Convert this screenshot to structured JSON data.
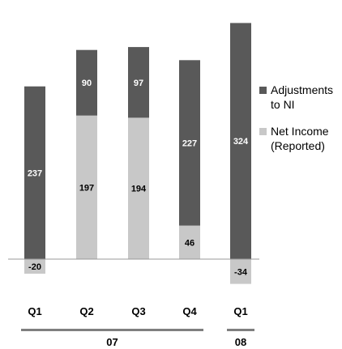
{
  "chart_data": {
    "type": "bar",
    "stacked": true,
    "categories": [
      "Q1",
      "Q2",
      "Q3",
      "Q4",
      "Q1"
    ],
    "groups": [
      {
        "label": "07",
        "categories": [
          "Q1",
          "Q2",
          "Q3",
          "Q4"
        ]
      },
      {
        "label": "08",
        "categories": [
          "Q1"
        ]
      }
    ],
    "series": [
      {
        "name": "Net Income (Reported)",
        "color": "#c8c8c8",
        "label_color": "#000000",
        "values": [
          -20,
          197,
          194,
          46,
          -34
        ]
      },
      {
        "name": "Adjustments to NI",
        "color": "#595959",
        "label_color": "#ffffff",
        "values": [
          237,
          90,
          97,
          227,
          324
        ]
      }
    ],
    "legend": {
      "position": "right",
      "entries": [
        {
          "line1": "Adjustments",
          "line2": "to NI",
          "color": "#595959"
        },
        {
          "line1": "Net Income",
          "line2": "(Reported)",
          "color": "#c8c8c8"
        }
      ]
    },
    "title": "",
    "xlabel": "",
    "ylabel": "",
    "ylim": [
      -42,
      312
    ],
    "grid": false
  }
}
